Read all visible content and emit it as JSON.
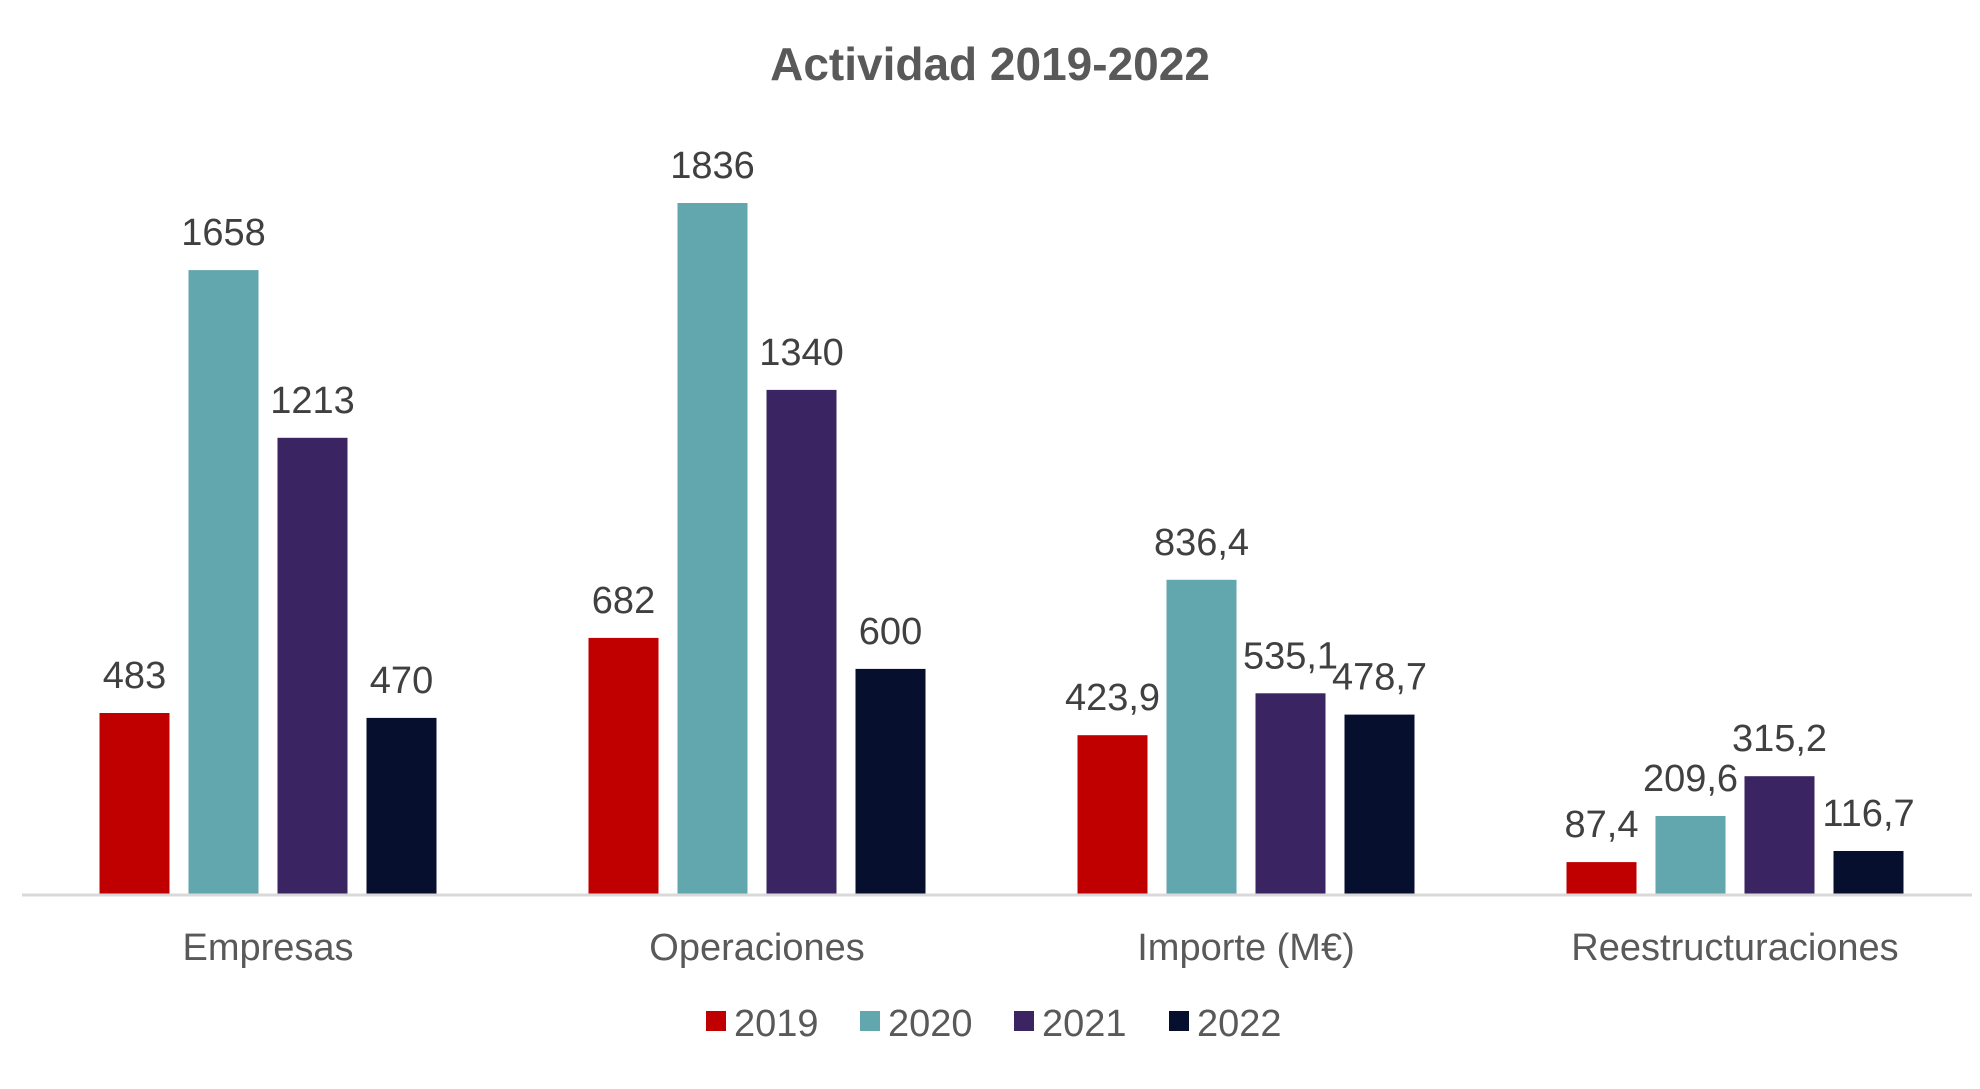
{
  "chart_data": {
    "type": "bar",
    "title": "Actividad 2019-2022",
    "xlabel": "",
    "ylabel": "",
    "categories": [
      "Empresas",
      "Operaciones",
      "Importe (M€)",
      "Reestructuraciones"
    ],
    "series": [
      {
        "name": "2019",
        "color": "#C00000",
        "values": [
          483,
          682,
          423.9,
          87.4
        ],
        "labels": [
          "483",
          "682",
          "423,9",
          "87,4"
        ]
      },
      {
        "name": "2020",
        "color": "#62A6AE",
        "values": [
          1658,
          1836,
          836.4,
          209.6
        ],
        "labels": [
          "1658",
          "1836",
          "836,4",
          "209,6"
        ]
      },
      {
        "name": "2021",
        "color": "#3A2461",
        "values": [
          1213,
          1340,
          535.1,
          315.2
        ],
        "labels": [
          "1213",
          "1340",
          "535,1",
          "315,2"
        ]
      },
      {
        "name": "2022",
        "color": "#070F2E",
        "values": [
          470,
          600,
          478.7,
          116.7
        ],
        "labels": [
          "470",
          "600",
          "478,7",
          "116,7"
        ]
      }
    ],
    "ylim": [
      0,
      2000
    ],
    "grid": false,
    "legend_position": "bottom"
  }
}
